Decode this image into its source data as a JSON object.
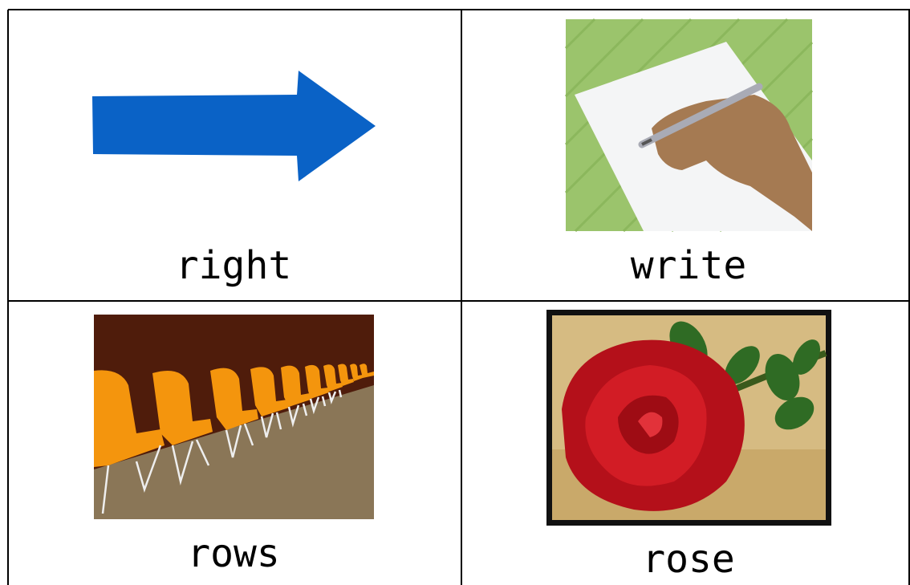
{
  "cards": [
    {
      "label": "right"
    },
    {
      "label": "write"
    },
    {
      "label": "rows"
    },
    {
      "label": "rose"
    }
  ]
}
